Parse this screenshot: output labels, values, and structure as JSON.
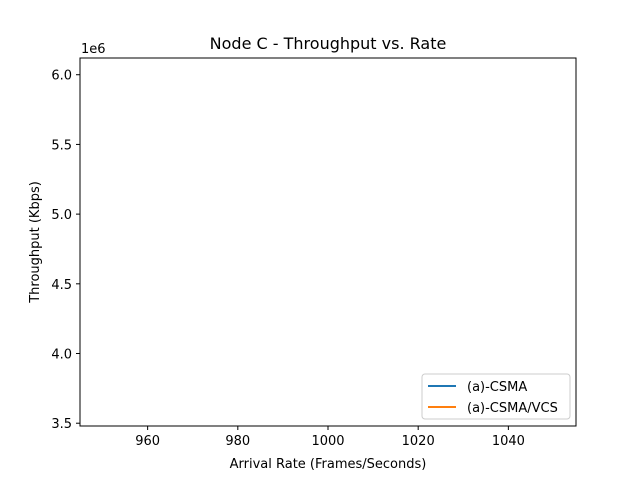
{
  "chart_data": {
    "type": "line",
    "title": "Node C - Throughput vs. Rate",
    "xlabel": "Arrival Rate (Frames/Seconds)",
    "ylabel": "Throughput (Kbps)",
    "y_offset_label": "1e6",
    "xlim": [
      945,
      1055
    ],
    "ylim": [
      3.48,
      6.12
    ],
    "x_ticks": [
      960,
      980,
      1000,
      1020,
      1040
    ],
    "x_tick_labels": [
      "960",
      "980",
      "1000",
      "1020",
      "1040"
    ],
    "y_ticks": [
      3.5,
      4.0,
      4.5,
      5.0,
      5.5,
      6.0
    ],
    "y_tick_labels": [
      "3.5",
      "4.0",
      "4.5",
      "5.0",
      "5.5",
      "6.0"
    ],
    "grid": false,
    "legend_position": "lower-right",
    "series": [
      {
        "name": "(a)-CSMA",
        "color": "#1f77b4",
        "x": [],
        "y": []
      },
      {
        "name": "(a)-CSMA/VCS",
        "color": "#ff7f0e",
        "x": [],
        "y": []
      }
    ]
  }
}
